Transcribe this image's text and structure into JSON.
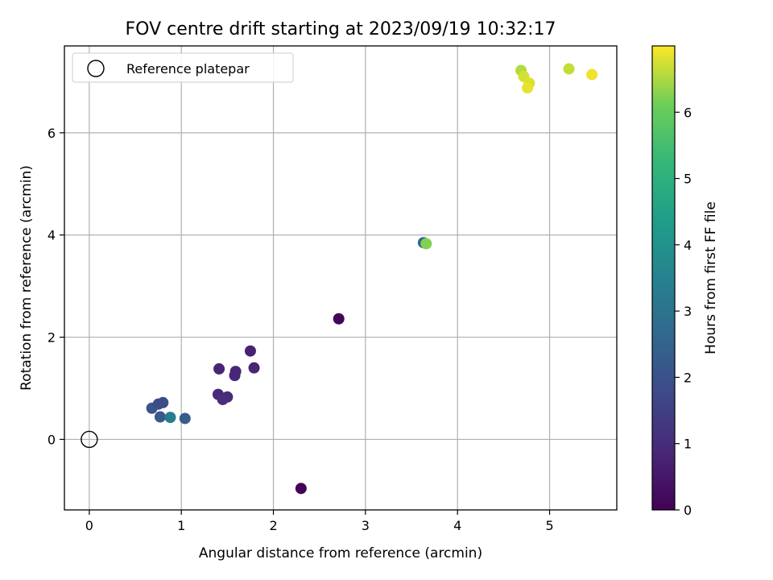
{
  "chart_data": {
    "type": "scatter",
    "title": "FOV centre drift starting at 2023/09/19 10:32:17",
    "xlabel": "Angular distance from reference (arcmin)",
    "ylabel": "Rotation from reference (arcmin)",
    "xlim": [
      -0.27,
      5.73
    ],
    "ylim": [
      -1.38,
      7.7
    ],
    "xticks": [
      0,
      1,
      2,
      3,
      4,
      5
    ],
    "yticks": [
      0,
      2,
      4,
      6
    ],
    "grid": true,
    "legend_position": "top-left",
    "reference": {
      "label": "Reference platepar",
      "x": 0,
      "y": 0
    },
    "colorbar": {
      "label": "Hours from first FF file",
      "range": [
        0,
        7.0
      ],
      "ticks": [
        0,
        1,
        2,
        3,
        4,
        5,
        6
      ],
      "colormap": "viridis"
    },
    "points": [
      {
        "x": 2.3,
        "y": -0.96,
        "c": 0.05
      },
      {
        "x": 2.71,
        "y": 2.36,
        "c": 0.1
      },
      {
        "x": 1.75,
        "y": 1.73,
        "c": 0.75
      },
      {
        "x": 1.41,
        "y": 1.38,
        "c": 0.8
      },
      {
        "x": 1.59,
        "y": 1.33,
        "c": 0.85
      },
      {
        "x": 1.58,
        "y": 1.25,
        "c": 0.85
      },
      {
        "x": 1.79,
        "y": 1.4,
        "c": 0.8
      },
      {
        "x": 1.4,
        "y": 0.88,
        "c": 0.9
      },
      {
        "x": 1.5,
        "y": 0.83,
        "c": 0.95
      },
      {
        "x": 1.45,
        "y": 0.78,
        "c": 1.0
      },
      {
        "x": 0.68,
        "y": 0.61,
        "c": 2.1
      },
      {
        "x": 0.75,
        "y": 0.69,
        "c": 1.9
      },
      {
        "x": 0.8,
        "y": 0.72,
        "c": 1.8
      },
      {
        "x": 0.77,
        "y": 0.44,
        "c": 2.2
      },
      {
        "x": 1.04,
        "y": 0.41,
        "c": 2.3
      },
      {
        "x": 0.88,
        "y": 0.43,
        "c": 3.3
      },
      {
        "x": 3.63,
        "y": 3.85,
        "c": 2.6
      },
      {
        "x": 3.66,
        "y": 3.83,
        "c": 6.25
      },
      {
        "x": 4.69,
        "y": 7.22,
        "c": 6.55
      },
      {
        "x": 4.72,
        "y": 7.1,
        "c": 6.75
      },
      {
        "x": 4.78,
        "y": 6.97,
        "c": 6.8
      },
      {
        "x": 4.76,
        "y": 6.88,
        "c": 6.85
      },
      {
        "x": 5.21,
        "y": 7.25,
        "c": 6.65
      },
      {
        "x": 5.46,
        "y": 7.14,
        "c": 6.9
      }
    ]
  }
}
